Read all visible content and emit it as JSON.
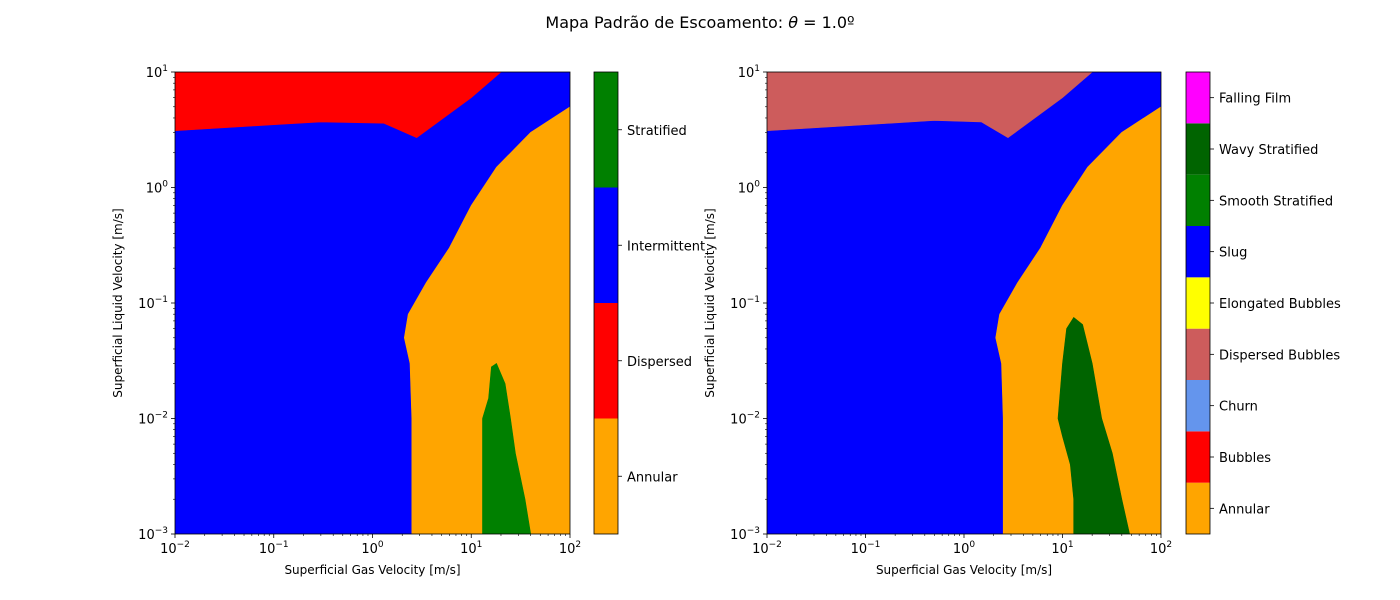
{
  "title_prefix": "Mapa Padrão de Escoamento: ",
  "title_symbol": "θ",
  "title_suffix": " = 1.0º",
  "chart_data": [
    {
      "type": "heatmap",
      "name": "map-left",
      "xlabel": "Superficial Gas Velocity [m/s]",
      "ylabel": "Superficial Liquid Velocity [m/s]",
      "xscale": "log",
      "yscale": "log",
      "xlim": [
        0.01,
        100
      ],
      "ylim": [
        0.001,
        10
      ],
      "x_tick_exponents": [
        -2,
        -1,
        0,
        1,
        2
      ],
      "y_tick_exponents": [
        -3,
        -2,
        -1,
        0,
        1
      ],
      "colorbar_position": "right",
      "colorbar": [
        {
          "label": "Annular",
          "color": "#ffa500"
        },
        {
          "label": "Dispersed",
          "color": "#ff0000"
        },
        {
          "label": "Intermittent",
          "color": "#0000ff"
        },
        {
          "label": "Stratified",
          "color": "#008000"
        }
      ],
      "regions": [
        {
          "label": "Intermittent",
          "color": "#0000ff",
          "polygon": [
            [
              0.01,
              0.001
            ],
            [
              2.5,
              0.001
            ],
            [
              2.5,
              0.01
            ],
            [
              2.4,
              0.03
            ],
            [
              2.1,
              0.05
            ],
            [
              2.3,
              0.08
            ],
            [
              3.5,
              0.15
            ],
            [
              6,
              0.3
            ],
            [
              10,
              0.7
            ],
            [
              18,
              1.5
            ],
            [
              40,
              3
            ],
            [
              100,
              5
            ],
            [
              100,
              10
            ],
            [
              20,
              10
            ],
            [
              2.8,
              2.7
            ],
            [
              1.3,
              3.6
            ],
            [
              0.3,
              3.7
            ],
            [
              0.01,
              3.1
            ]
          ]
        },
        {
          "label": "Dispersed",
          "color": "#ff0000",
          "polygon": [
            [
              0.01,
              3.1
            ],
            [
              0.1,
              3.5
            ],
            [
              0.3,
              3.7
            ],
            [
              1.3,
              3.6
            ],
            [
              2.8,
              2.7
            ],
            [
              10,
              6
            ],
            [
              20,
              10
            ],
            [
              0.01,
              10
            ]
          ]
        },
        {
          "label": "Annular",
          "color": "#ffa500",
          "polygon": [
            [
              2.5,
              0.001
            ],
            [
              100,
              0.001
            ],
            [
              100,
              5
            ],
            [
              40,
              3
            ],
            [
              18,
              1.5
            ],
            [
              10,
              0.7
            ],
            [
              6,
              0.3
            ],
            [
              3.5,
              0.15
            ],
            [
              2.3,
              0.08
            ],
            [
              2.1,
              0.05
            ],
            [
              2.4,
              0.03
            ],
            [
              2.5,
              0.01
            ]
          ]
        },
        {
          "label": "Stratified",
          "color": "#008000",
          "polygon": [
            [
              13,
              0.001
            ],
            [
              40,
              0.001
            ],
            [
              35,
              0.002
            ],
            [
              28,
              0.005
            ],
            [
              25,
              0.01
            ],
            [
              22,
              0.02
            ],
            [
              18,
              0.03
            ],
            [
              16,
              0.028
            ],
            [
              15,
              0.015
            ],
            [
              13,
              0.01
            ]
          ]
        }
      ]
    },
    {
      "type": "heatmap",
      "name": "map-right",
      "xlabel": "Superficial Gas Velocity [m/s]",
      "ylabel": "Superficial Liquid Velocity [m/s]",
      "xscale": "log",
      "yscale": "log",
      "xlim": [
        0.01,
        100
      ],
      "ylim": [
        0.001,
        10
      ],
      "x_tick_exponents": [
        -2,
        -1,
        0,
        1,
        2
      ],
      "y_tick_exponents": [
        -3,
        -2,
        -1,
        0,
        1
      ],
      "colorbar_position": "right",
      "colorbar": [
        {
          "label": "Annular",
          "color": "#ffa500"
        },
        {
          "label": "Bubbles",
          "color": "#ff0000"
        },
        {
          "label": "Churn",
          "color": "#6495ed"
        },
        {
          "label": "Dispersed Bubbles",
          "color": "#cd5c5c"
        },
        {
          "label": "Elongated Bubbles",
          "color": "#ffff00"
        },
        {
          "label": "Slug",
          "color": "#0000ff"
        },
        {
          "label": "Smooth Stratified",
          "color": "#008000"
        },
        {
          "label": "Wavy Stratified",
          "color": "#006400"
        },
        {
          "label": "Falling Film",
          "color": "#ff00ff"
        }
      ],
      "regions": [
        {
          "label": "Slug",
          "color": "#0000ff",
          "polygon": [
            [
              0.01,
              0.001
            ],
            [
              2.5,
              0.001
            ],
            [
              2.5,
              0.01
            ],
            [
              2.4,
              0.03
            ],
            [
              2.1,
              0.05
            ],
            [
              2.3,
              0.08
            ],
            [
              3.5,
              0.15
            ],
            [
              6,
              0.3
            ],
            [
              10,
              0.7
            ],
            [
              18,
              1.5
            ],
            [
              40,
              3
            ],
            [
              100,
              5
            ],
            [
              100,
              10
            ],
            [
              20,
              10
            ],
            [
              2.8,
              2.7
            ],
            [
              1.5,
              3.7
            ],
            [
              0.5,
              3.8
            ],
            [
              0.01,
              3.1
            ]
          ]
        },
        {
          "label": "Dispersed Bubbles",
          "color": "#cd5c5c",
          "polygon": [
            [
              0.01,
              3.1
            ],
            [
              0.1,
              3.5
            ],
            [
              0.5,
              3.8
            ],
            [
              1.5,
              3.7
            ],
            [
              2.8,
              2.7
            ],
            [
              10,
              6
            ],
            [
              20,
              10
            ],
            [
              0.01,
              10
            ]
          ]
        },
        {
          "label": "Annular",
          "color": "#ffa500",
          "polygon": [
            [
              2.5,
              0.001
            ],
            [
              100,
              0.001
            ],
            [
              100,
              5
            ],
            [
              40,
              3
            ],
            [
              18,
              1.5
            ],
            [
              10,
              0.7
            ],
            [
              6,
              0.3
            ],
            [
              3.5,
              0.15
            ],
            [
              2.3,
              0.08
            ],
            [
              2.1,
              0.05
            ],
            [
              2.4,
              0.03
            ],
            [
              2.5,
              0.01
            ]
          ]
        },
        {
          "label": "Wavy Stratified",
          "color": "#006400",
          "polygon": [
            [
              13,
              0.001
            ],
            [
              48,
              0.001
            ],
            [
              40,
              0.002
            ],
            [
              32,
              0.005
            ],
            [
              25,
              0.01
            ],
            [
              20,
              0.03
            ],
            [
              16,
              0.065
            ],
            [
              13,
              0.075
            ],
            [
              11,
              0.06
            ],
            [
              10,
              0.03
            ],
            [
              9,
              0.01
            ],
            [
              10,
              0.007
            ],
            [
              12,
              0.004
            ],
            [
              13,
              0.002
            ]
          ]
        }
      ]
    }
  ]
}
